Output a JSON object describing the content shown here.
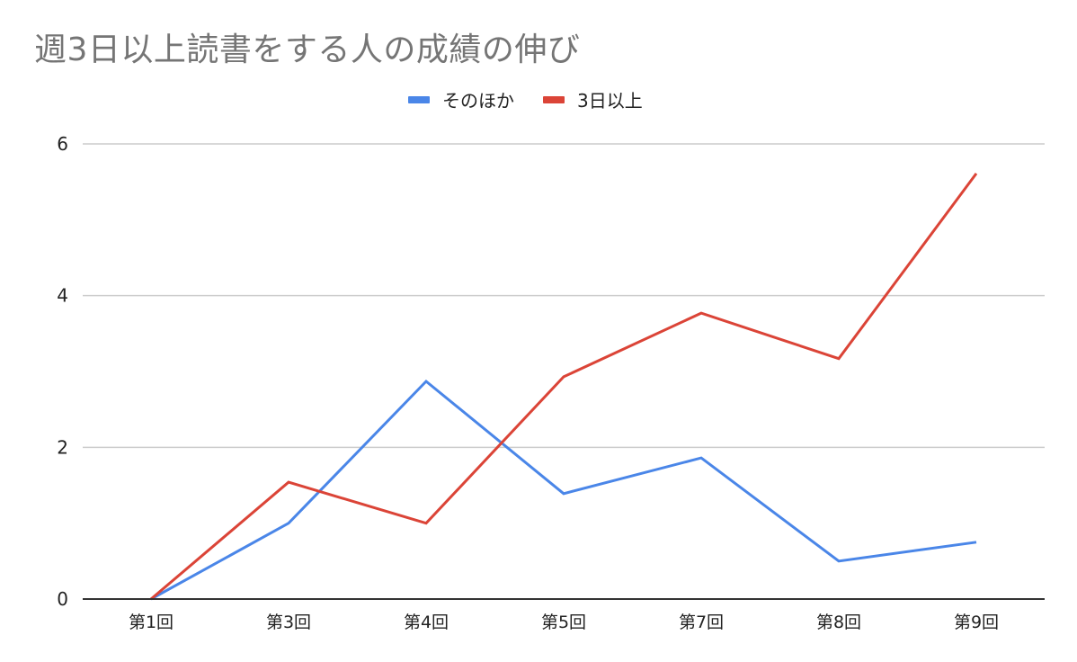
{
  "chart": {
    "title": "週3日以上読書をする人の成績の伸び",
    "legend": [
      {
        "label": "そのほか",
        "color": "#4a86e8"
      },
      {
        "label": "3日以上",
        "color": "#db4437"
      }
    ]
  },
  "chart_data": {
    "type": "line",
    "title": "週3日以上読書をする人の成績の伸び",
    "xlabel": "",
    "ylabel": "",
    "categories": [
      "第1回",
      "第3回",
      "第4回",
      "第5回",
      "第7回",
      "第8回",
      "第9回"
    ],
    "series": [
      {
        "name": "そのほか",
        "color": "#4a86e8",
        "values": [
          0,
          1.0,
          2.87,
          1.39,
          1.86,
          0.5,
          0.75
        ]
      },
      {
        "name": "3日以上",
        "color": "#db4437",
        "values": [
          0,
          1.54,
          1.0,
          2.93,
          3.77,
          3.17,
          5.61
        ]
      }
    ],
    "yticks": [
      0,
      2,
      4,
      6
    ],
    "ylim": [
      0,
      6
    ],
    "grid": true,
    "legend_position": "top"
  }
}
